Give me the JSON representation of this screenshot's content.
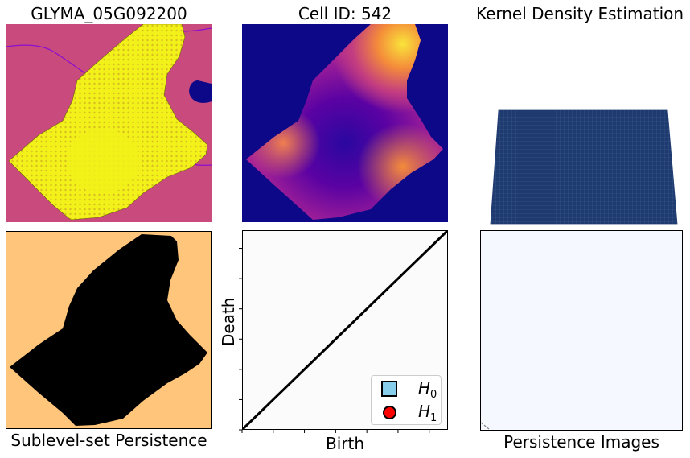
{
  "titles": {
    "gene": "GLYMA_05G092200",
    "cell": "Cell ID: 542",
    "kde": "Kernel Density Estimation",
    "sublevel": "Sublevel-set Persistence",
    "persistence_images": "Persistence Images"
  },
  "colors": {
    "background_magenta": "#c94a7c",
    "cell_yellow": "#f2f21a",
    "transcript_brown": "#a0522d",
    "plasma_dark": "#0d0887",
    "sublevel_orange": "#ffc57a",
    "kde_surface": "#1f3a6e",
    "h0": "#87ceeb",
    "h1": "#ff0000",
    "pi_background": "#f5f9ff"
  },
  "icons": {
    "h0_marker": "square-marker",
    "h1_marker": "circle-marker"
  },
  "chart_data": {
    "type": "scatter",
    "title": "",
    "xlabel": "Birth",
    "ylabel": "Death",
    "grid": false,
    "diagonal": true,
    "legend_position": "lower-right",
    "series": [
      {
        "name": "H0",
        "label_main": "H",
        "label_sub": "0",
        "marker": "square",
        "color": "#87ceeb",
        "values": []
      },
      {
        "name": "H1",
        "label_main": "H",
        "label_sub": "1",
        "marker": "circle",
        "color": "#ff0000",
        "values": []
      }
    ]
  }
}
